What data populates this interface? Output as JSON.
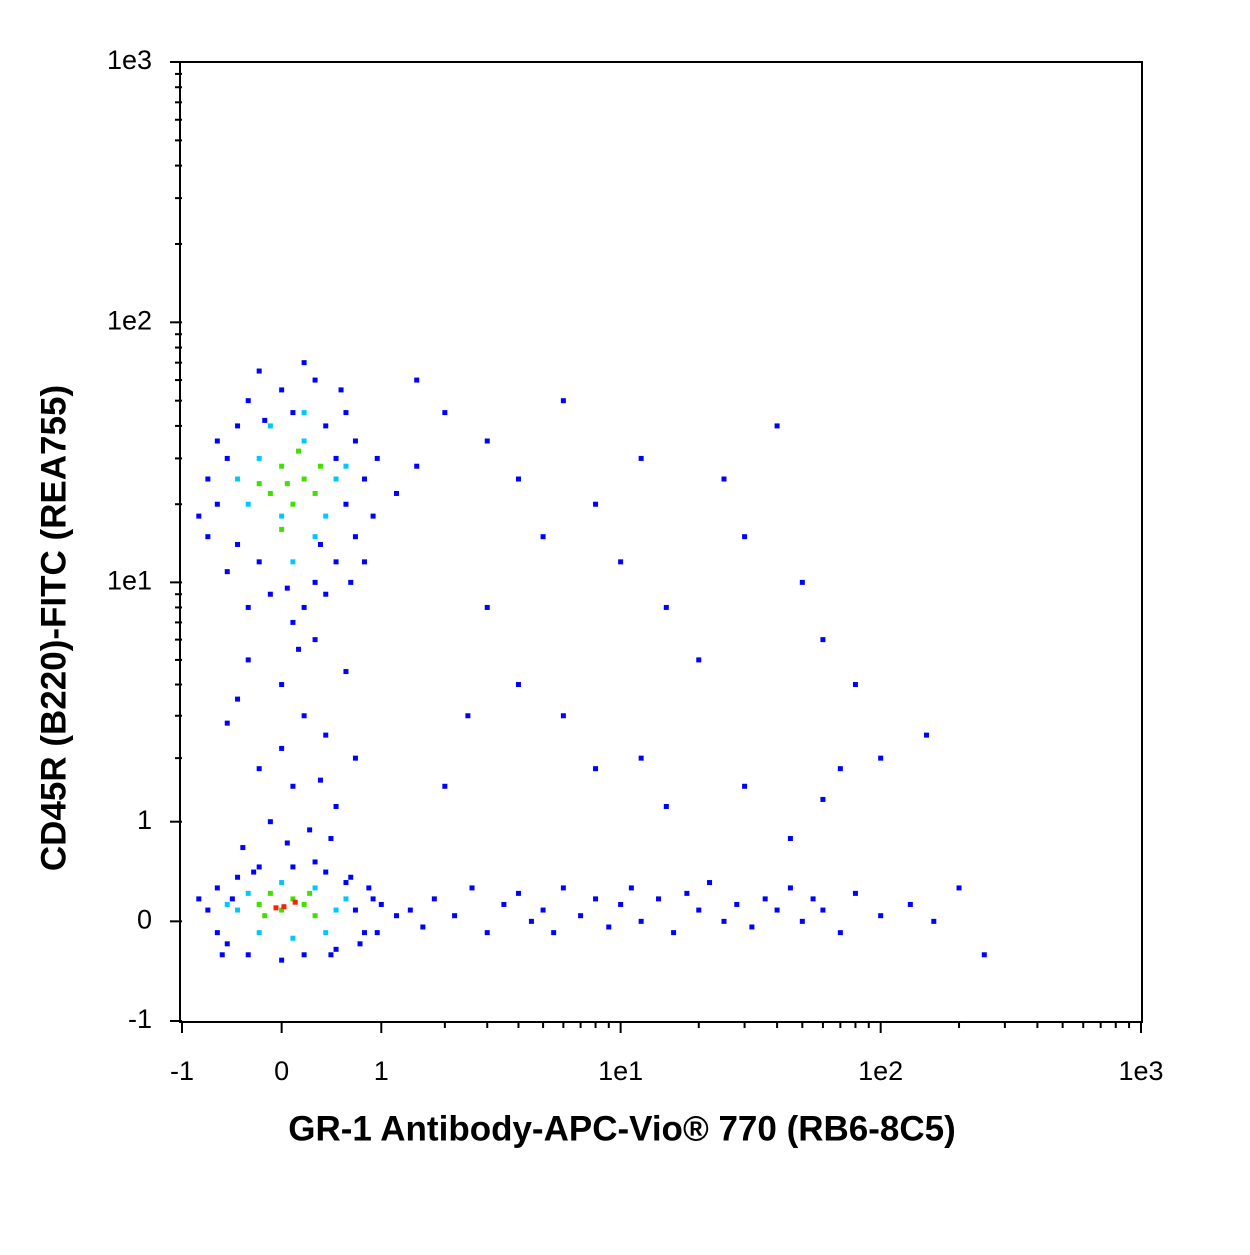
{
  "chart_data": {
    "type": "scatter",
    "x_label": "GR-1 Antibody-APC-Vio® 770 (RB6-8C5)",
    "y_label": "CD45R (B220)-FITC (REA755)",
    "xscale": "asinh",
    "yscale": "asinh",
    "xlim": [
      -1,
      1000
    ],
    "ylim": [
      -1,
      1000
    ],
    "xticks": [
      -1,
      0,
      1,
      {
        "value": 10,
        "label": "1e1"
      },
      {
        "value": 100,
        "label": "1e2"
      },
      {
        "value": 1000,
        "label": "1e3"
      }
    ],
    "yticks": [
      -1,
      0,
      1,
      {
        "value": 10,
        "label": "1e1"
      },
      {
        "value": 100,
        "label": "1e2"
      },
      {
        "value": 1000,
        "label": "1e3"
      }
    ],
    "xminorticks": [
      2,
      3,
      4,
      5,
      6,
      7,
      8,
      9,
      20,
      30,
      40,
      50,
      60,
      70,
      80,
      90,
      200,
      300,
      400,
      500,
      600,
      700,
      800,
      900
    ],
    "yminorticks": [
      2,
      3,
      4,
      5,
      6,
      7,
      8,
      9,
      20,
      30,
      40,
      50,
      60,
      70,
      80,
      90,
      200,
      300,
      400,
      500,
      600,
      700,
      800,
      900
    ],
    "series": [
      {
        "color": "#0000ff",
        "x": [
          -0.6,
          -0.5,
          -0.7,
          -0.4,
          -0.3,
          -0.2,
          -0.1,
          0,
          0.1,
          0.2,
          0.3,
          0.4,
          0.5,
          0.6,
          0.7,
          0.8,
          0.9,
          0.5,
          0.3,
          -0.5,
          -0.6,
          0.6,
          0.7,
          -0.3,
          0.1,
          0.4,
          -0.7,
          0.8,
          -0.2,
          0.2,
          0.95,
          1.2,
          1.5,
          -0.8,
          -0.4,
          0.55,
          0.05,
          -0.15,
          0.35,
          0.65,
          -0.3,
          0,
          0.2,
          0.4,
          -0.2,
          0.1,
          0.3,
          -0.4,
          0.5,
          0,
          0.6,
          -0.1,
          0.25,
          0.45,
          -0.35,
          0.15,
          0.7,
          -0.5,
          0.35,
          0.05,
          -0.7,
          -0.6,
          -0.5,
          -0.4,
          -0.3,
          0.6,
          0.7,
          0.8,
          0.9,
          0.5,
          0.4,
          -0.6,
          0,
          0.2,
          -0.2,
          0.3,
          1.0,
          1.2,
          -0.8,
          0.65,
          -0.45,
          0.1,
          0.85,
          -0.55,
          0.75,
          1.4,
          1.6,
          -0.25,
          0.45,
          0.95,
          1.8,
          2.2,
          2.6,
          3,
          3.5,
          4,
          4.5,
          5,
          5.5,
          6,
          7,
          8,
          9,
          10,
          11,
          12,
          14,
          16,
          18,
          20,
          22,
          25,
          28,
          32,
          36,
          40,
          45,
          50,
          55,
          60,
          70,
          80,
          100,
          130,
          160,
          250,
          200,
          1.5,
          2,
          3,
          4,
          5,
          6,
          8,
          10,
          12,
          15,
          20,
          25,
          30,
          40,
          50,
          60,
          80,
          100,
          150,
          3,
          4,
          6,
          8,
          12,
          15,
          30,
          60,
          45,
          70,
          2,
          2.5
        ],
        "values": [
          20,
          30,
          15,
          40,
          50,
          12,
          9,
          55,
          45,
          8,
          10,
          40,
          30,
          20,
          15,
          25,
          18,
          12,
          60,
          11,
          35,
          45,
          35,
          8,
          7,
          9,
          25,
          12,
          65,
          70,
          30,
          22,
          28,
          18,
          14,
          55,
          9.5,
          42,
          14,
          10,
          5,
          4,
          3,
          2.5,
          1.8,
          1.5,
          6,
          3.5,
          1.2,
          2.2,
          4.5,
          1,
          0.9,
          0.8,
          0.7,
          5.5,
          2,
          2.8,
          1.6,
          0.75,
          0.1,
          0.3,
          -0.2,
          0.4,
          -0.3,
          0.35,
          0.1,
          -0.1,
          0.2,
          -0.25,
          0.45,
          -0.1,
          -0.35,
          -0.3,
          0.5,
          0.55,
          0.15,
          0.05,
          0.2,
          0.4,
          0.2,
          0.5,
          0.3,
          -0.3,
          -0.2,
          0.1,
          -0.05,
          0.45,
          -0.3,
          -0.1,
          0.2,
          0.05,
          0.3,
          -0.1,
          0.15,
          0.25,
          0,
          0.1,
          -0.1,
          0.3,
          0.05,
          0.2,
          -0.05,
          0.15,
          0.3,
          0,
          0.2,
          -0.1,
          0.25,
          0.1,
          0.35,
          0,
          0.15,
          -0.05,
          0.2,
          0.1,
          0.3,
          0,
          0.2,
          0.1,
          -0.1,
          0.25,
          0.05,
          0.15,
          0,
          -0.3,
          0.3,
          60,
          45,
          35,
          25,
          15,
          50,
          20,
          12,
          30,
          8,
          5,
          25,
          15,
          40,
          10,
          6,
          4,
          2,
          2.5,
          8,
          4,
          3,
          1.8,
          2,
          1.2,
          1.5,
          1.3,
          0.8,
          1.8,
          1.5,
          3
        ]
      },
      {
        "color": "#00c8ff",
        "x": [
          -0.3,
          -0.2,
          0,
          0.2,
          0.4,
          0.5,
          -0.1,
          0.3,
          -0.4,
          0.6,
          0.1,
          0.2,
          -0.4,
          -0.3,
          0,
          0.3,
          0.5,
          0.6,
          0.4,
          -0.2,
          0.1,
          -0.5
        ],
        "values": [
          20,
          30,
          18,
          35,
          18,
          25,
          40,
          15,
          25,
          28,
          12,
          45,
          0.1,
          0.25,
          0.35,
          0.3,
          0.1,
          0.2,
          -0.1,
          -0.1,
          -0.15,
          0.15
        ]
      },
      {
        "color": "#40e000",
        "x": [
          -0.1,
          0,
          0.1,
          0.2,
          0.3,
          0,
          0.15,
          -0.2,
          0.35,
          0.05,
          -0.2,
          -0.1,
          0,
          0.1,
          0.2,
          0.3,
          -0.15,
          0.25
        ],
        "values": [
          22,
          28,
          20,
          25,
          22,
          16,
          32,
          24,
          28,
          24,
          0.15,
          0.25,
          0.1,
          0.2,
          0.15,
          0.05,
          0.05,
          0.25
        ]
      },
      {
        "color": "#ff2000",
        "x": [
          0.02,
          0.12,
          -0.05
        ],
        "values": [
          0.13,
          0.17,
          0.12
        ]
      }
    ]
  }
}
